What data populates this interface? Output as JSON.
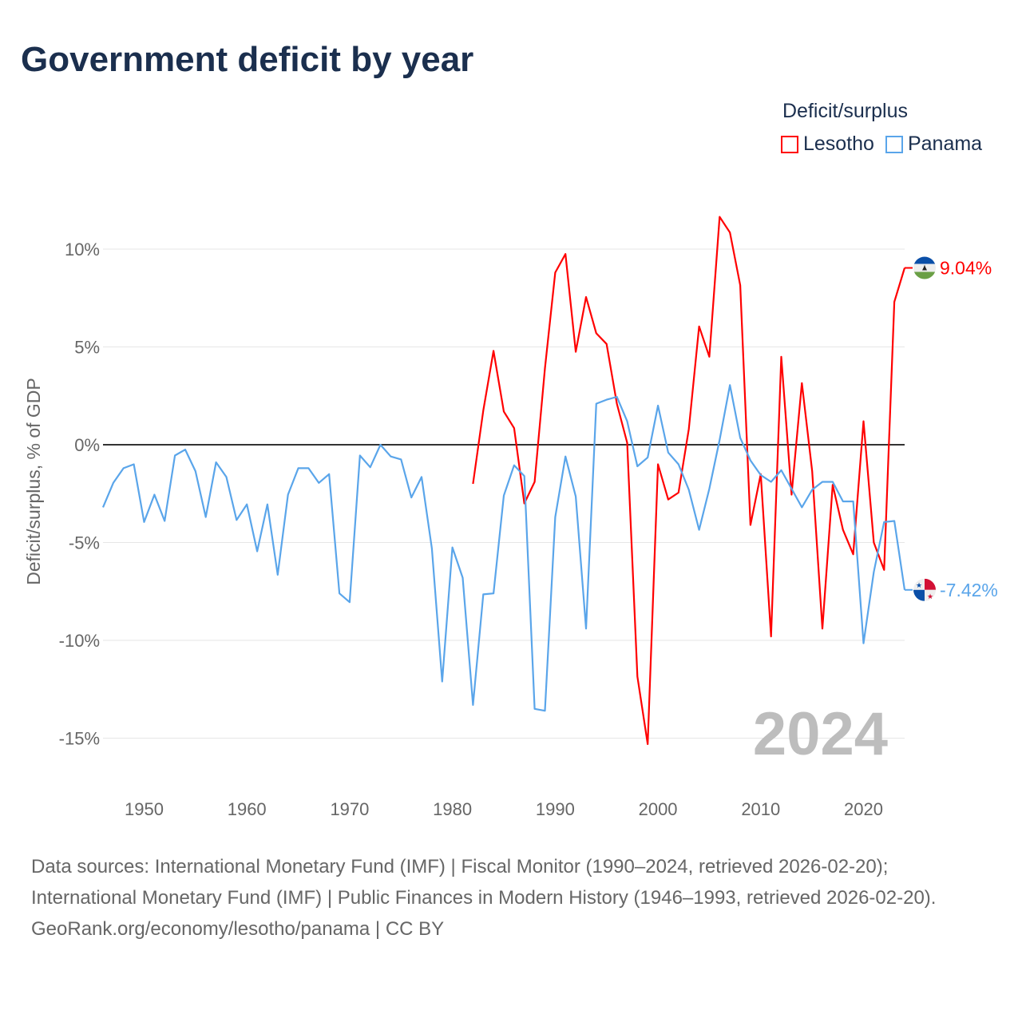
{
  "title": "Government deficit by year",
  "legend": {
    "title": "Deficit/surplus",
    "items": [
      {
        "label": "Lesotho",
        "color": "#ff0000"
      },
      {
        "label": "Panama",
        "color": "#5aa5ea"
      }
    ]
  },
  "year_watermark": "2024",
  "end_labels": {
    "lesotho": "9.04%",
    "panama": "-7.42%"
  },
  "sources": {
    "line1": "Data sources: International Monetary Fund (IMF) | Fiscal Monitor (1990–2024, retrieved 2026-02-20); International Monetary Fund (IMF) | Public Finances in Modern History (1946–1993, retrieved 2026-02-20).",
    "line2": "GeoRank.org/economy/lesotho/panama | CC BY"
  },
  "chart_data": {
    "type": "line",
    "title": "Government deficit by year",
    "xlabel": "",
    "ylabel": "Deficit/surplus, % of GDP",
    "xlim": [
      1946,
      2024
    ],
    "ylim": [
      -17,
      13
    ],
    "x_ticks": [
      1950,
      1960,
      1970,
      1980,
      1990,
      2000,
      2010,
      2020
    ],
    "x_tick_labels": [
      "1950",
      "1960",
      "1970",
      "1980",
      "1990",
      "2000",
      "2010",
      "2020"
    ],
    "y_ticks": [
      10,
      5,
      0,
      -5,
      -10,
      -15
    ],
    "y_tick_labels": [
      "10%",
      "5%",
      "0%",
      "-5%",
      "-10%",
      "-15%"
    ],
    "grid": true,
    "legend_position": "top-right",
    "series": [
      {
        "name": "Lesotho",
        "color": "#ff0000",
        "start_year": 1982,
        "values": [
          -2.0,
          1.75,
          4.8,
          1.7,
          0.85,
          -3.0,
          -1.9,
          3.9,
          8.8,
          9.75,
          4.75,
          7.55,
          5.7,
          5.15,
          2.1,
          0.1,
          -11.85,
          -15.3,
          -1.0,
          -2.8,
          -2.45,
          0.8,
          6.05,
          4.5,
          11.65,
          10.85,
          8.15,
          -4.1,
          -1.5,
          -9.8,
          4.5,
          -2.55,
          3.15,
          -1.35,
          -9.4,
          -2.05,
          -4.35,
          -5.6,
          1.2,
          -5.0,
          -6.4,
          7.3,
          9.04
        ]
      },
      {
        "name": "Panama",
        "color": "#5aa5ea",
        "start_year": 1946,
        "values": [
          -3.2,
          -1.95,
          -1.2,
          -1.0,
          -3.95,
          -2.55,
          -3.9,
          -0.55,
          -0.25,
          -1.35,
          -3.7,
          -0.9,
          -1.65,
          -3.85,
          -3.05,
          -5.45,
          -3.05,
          -6.65,
          -2.55,
          -1.2,
          -1.2,
          -1.95,
          -1.5,
          -7.6,
          -8.05,
          -0.55,
          -1.15,
          0.0,
          -0.6,
          -0.75,
          -2.7,
          -1.65,
          -5.3,
          -12.1,
          -5.25,
          -6.8,
          -13.3,
          -7.65,
          -7.6,
          -2.6,
          -1.05,
          -1.6,
          -13.5,
          -13.6,
          -3.7,
          -0.6,
          -2.65,
          -9.4,
          2.1,
          2.3,
          2.45,
          1.2,
          -1.1,
          -0.65,
          2.0,
          -0.4,
          -1.0,
          -2.3,
          -4.35,
          -2.25,
          0.25,
          3.05,
          0.35,
          -0.8,
          -1.55,
          -1.9,
          -1.3,
          -2.25,
          -3.2,
          -2.3,
          -1.9,
          -1.9,
          -2.9,
          -2.9,
          -10.15,
          -6.5,
          -3.95,
          -3.9,
          -7.42
        ]
      }
    ]
  }
}
